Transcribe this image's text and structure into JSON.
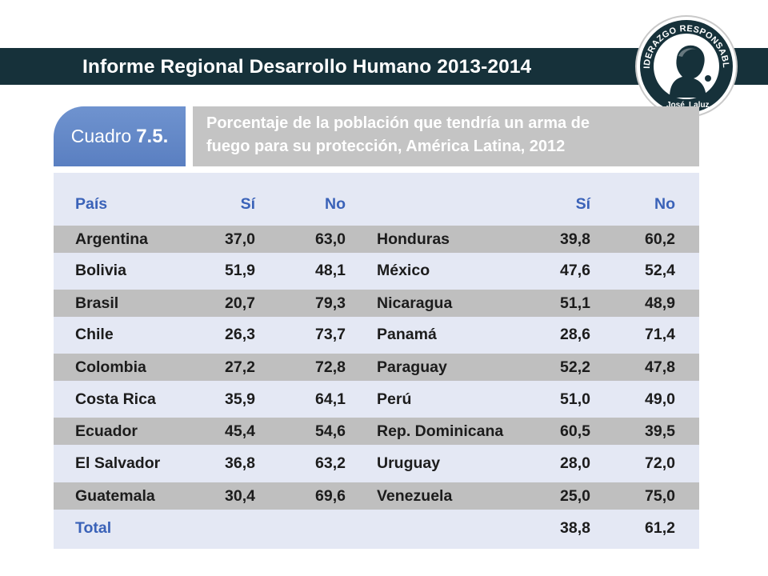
{
  "header": {
    "title": "Informe Regional Desarrollo Humano 2013-2014"
  },
  "logo": {
    "top_text": "LIDERAZGO RESPONSABLE",
    "bottom_left": "José",
    "bottom_right": "Laluz"
  },
  "caption": {
    "label": "Cuadro",
    "number": "7.5.",
    "title_line1": "Porcentaje de la población que tendría un arma de",
    "title_line2": "fuego para su protección, América Latina, 2012"
  },
  "table": {
    "headers": {
      "pais": "País",
      "si1": "Sí",
      "no1": "No",
      "si2": "Sí",
      "no2": "No"
    },
    "rows": [
      {
        "p1": "Argentina",
        "s1": "37,0",
        "n1": "63,0",
        "p2": "Honduras",
        "s2": "39,8",
        "n2": "60,2"
      },
      {
        "p1": "Bolivia",
        "s1": "51,9",
        "n1": "48,1",
        "p2": "México",
        "s2": "47,6",
        "n2": "52,4"
      },
      {
        "p1": "Brasil",
        "s1": "20,7",
        "n1": "79,3",
        "p2": "Nicaragua",
        "s2": "51,1",
        "n2": "48,9"
      },
      {
        "p1": "Chile",
        "s1": "26,3",
        "n1": "73,7",
        "p2": "Panamá",
        "s2": "28,6",
        "n2": "71,4"
      },
      {
        "p1": "Colombia",
        "s1": "27,2",
        "n1": "72,8",
        "p2": "Paraguay",
        "s2": "52,2",
        "n2": "47,8"
      },
      {
        "p1": "Costa Rica",
        "s1": "35,9",
        "n1": "64,1",
        "p2": "Perú",
        "s2": "51,0",
        "n2": "49,0"
      },
      {
        "p1": "Ecuador",
        "s1": "45,4",
        "n1": "54,6",
        "p2": "Rep. Dominicana",
        "s2": "60,5",
        "n2": "39,5"
      },
      {
        "p1": "El Salvador",
        "s1": "36,8",
        "n1": "63,2",
        "p2": "Uruguay",
        "s2": "28,0",
        "n2": "72,0"
      },
      {
        "p1": "Guatemala",
        "s1": "30,4",
        "n1": "69,6",
        "p2": "Venezuela",
        "s2": "25,0",
        "n2": "75,0"
      }
    ],
    "total": {
      "label": "Total",
      "si": "38,8",
      "no": "61,2"
    }
  }
}
